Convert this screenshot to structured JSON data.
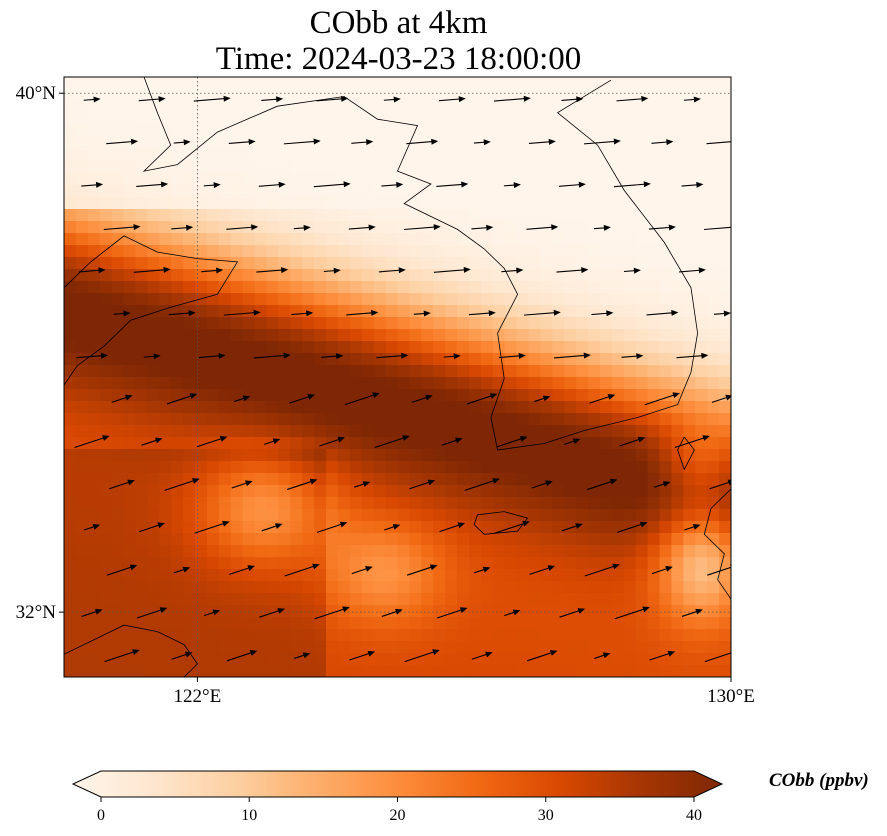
{
  "title": {
    "line1": "CObb at 4km",
    "line2": "Time: 2024-03-23 18:00:00"
  },
  "map": {
    "lat_range": [
      31,
      40.25
    ],
    "lon_range": [
      120,
      130
    ],
    "lat_ticks": [
      {
        "value": 40,
        "label": "40°N"
      },
      {
        "value": 32,
        "label": "32°N"
      }
    ],
    "lon_ticks": [
      {
        "value": 122,
        "label": "122°E"
      },
      {
        "value": 130,
        "label": "130°E"
      }
    ],
    "gridlines": "dotted",
    "field_description": "high CObb across south-west and centre, low in north; band of maxima along ~35°N",
    "wind_vectors": "westerly arrows across domain"
  },
  "colorbar": {
    "label": "CObb (ppbv)",
    "min": 0,
    "max": 40,
    "ticks": [
      "0",
      "10",
      "20",
      "30",
      "40"
    ],
    "colors": [
      "#fff5eb",
      "#fee6ce",
      "#fdd0a2",
      "#fdae6b",
      "#fd8d3c",
      "#f16913",
      "#d94801",
      "#a63603",
      "#7f2704"
    ],
    "cmap": "OrRd",
    "extend": "both"
  }
}
